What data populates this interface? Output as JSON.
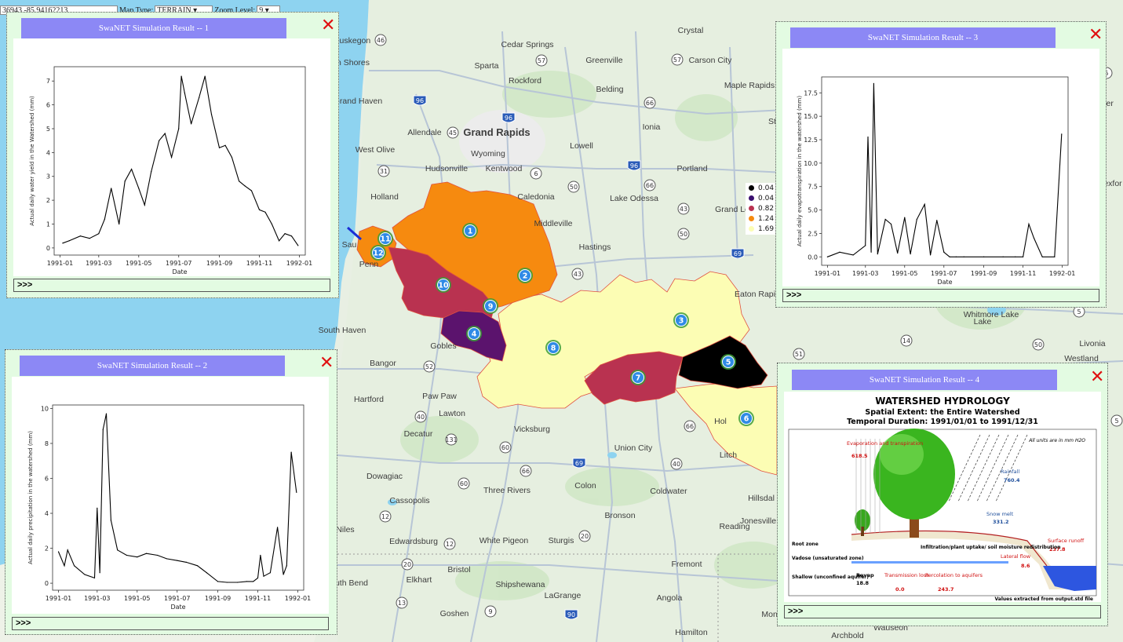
{
  "top_controls": {
    "coordinate_text": "36943,-85.94162213",
    "map_type_label": "Map Type:",
    "map_type_value": "TERRAIN",
    "zoom_label": "Zoom Level:",
    "zoom_value": "9"
  },
  "map": {
    "places": [
      {
        "name": "Crystal"
      },
      {
        "name": "Muskegon"
      },
      {
        "name": "Cedar Springs"
      },
      {
        "name": "Sparta"
      },
      {
        "name": "Greenville"
      },
      {
        "name": "Carson City"
      },
      {
        "name": "Rockford"
      },
      {
        "name": "Belding"
      },
      {
        "name": "Maple Rapids"
      },
      {
        "name": "Grand Haven"
      },
      {
        "name": "Allendale"
      },
      {
        "name": "Grand Rapids"
      },
      {
        "name": "Ionia"
      },
      {
        "name": "West Olive"
      },
      {
        "name": "Wyoming"
      },
      {
        "name": "Lowell"
      },
      {
        "name": "Hudsonville"
      },
      {
        "name": "Kentwood"
      },
      {
        "name": "Portland"
      },
      {
        "name": "Holland"
      },
      {
        "name": "Caledonia"
      },
      {
        "name": "Lake Odessa"
      },
      {
        "name": "Grand Le"
      },
      {
        "name": "Middleville"
      },
      {
        "name": "Hastings"
      },
      {
        "name": "Eaton Rapi"
      },
      {
        "name": "South Haven"
      },
      {
        "name": "Gobles"
      },
      {
        "name": "Bangor"
      },
      {
        "name": "Paw Paw"
      },
      {
        "name": "Hartford"
      },
      {
        "name": "Lawton"
      },
      {
        "name": "Decatur"
      },
      {
        "name": "Vicksburg"
      },
      {
        "name": "Union City"
      },
      {
        "name": "Coldwater"
      },
      {
        "name": "Dowagiac"
      },
      {
        "name": "Three Rivers"
      },
      {
        "name": "Colon"
      },
      {
        "name": "Cassopolis"
      },
      {
        "name": "Bronson"
      },
      {
        "name": "Niles"
      },
      {
        "name": "Edwardsburg"
      },
      {
        "name": "White Pigeon"
      },
      {
        "name": "Sturgis"
      },
      {
        "name": "Reading"
      },
      {
        "name": "Bristol"
      },
      {
        "name": "Elkhart"
      },
      {
        "name": "Shipshewana"
      },
      {
        "name": "LaGrange"
      },
      {
        "name": "Fremont"
      },
      {
        "name": "Angola"
      },
      {
        "name": "Goshen"
      },
      {
        "name": "Hamilton"
      },
      {
        "name": "Whitmore Lake"
      },
      {
        "name": "Livonia"
      },
      {
        "name": "Westland"
      },
      {
        "name": "Hillsdal"
      },
      {
        "name": "Jonesville"
      },
      {
        "name": "Litch"
      },
      {
        "name": "Archbold"
      },
      {
        "name": "Wauseon"
      },
      {
        "name": "Montp"
      },
      {
        "name": "uth Bend"
      },
      {
        "name": "n Shores"
      },
      {
        "name": "Sau"
      },
      {
        "name": "Penn"
      },
      {
        "name": "Hol"
      },
      {
        "name": "St"
      },
      {
        "name": "exfor"
      },
      {
        "name": "ler"
      },
      {
        "name": "Lake"
      }
    ],
    "shields": [
      "46",
      "57",
      "57",
      "96",
      "66",
      "96",
      "45",
      "6",
      "96",
      "31",
      "50",
      "66",
      "43",
      "50",
      "69",
      "43",
      "52",
      "14",
      "50",
      "51",
      "40",
      "131",
      "60",
      "66",
      "69",
      "40",
      "60",
      "66",
      "12",
      "12",
      "20",
      "13",
      "9",
      "90",
      "20",
      "5",
      "5",
      "5"
    ],
    "subbasin_labels": [
      "1",
      "2",
      "3",
      "4",
      "5",
      "6",
      "7",
      "8",
      "9",
      "10",
      "11",
      "12"
    ],
    "subbasin_colors": {
      "orange": "#f68a0f",
      "crimson": "#b93250",
      "purple": "#5b136d",
      "pale": "#fcfdb4",
      "black": "#000000"
    }
  },
  "legend": {
    "entries": [
      {
        "value": "0.04",
        "color": "#000000"
      },
      {
        "value": "0.04",
        "color": "#3b0f70"
      },
      {
        "value": "0.82",
        "color": "#b93250"
      },
      {
        "value": "1.24",
        "color": "#f68a0f"
      },
      {
        "value": "1.69",
        "color": "#fcfdb4"
      }
    ]
  },
  "popups": [
    {
      "title": "SwaNET Simulation Result -- 1",
      "more": ">>>",
      "close": "✕"
    },
    {
      "title": "SwaNET Simulation Result -- 2",
      "more": ">>>",
      "close": "✕"
    },
    {
      "title": "SwaNET Simulation Result -- 3",
      "more": ">>>",
      "close": "✕"
    },
    {
      "title": "SwaNET Simulation Result -- 4",
      "more": ">>>",
      "close": "✕"
    }
  ],
  "chart_data": [
    {
      "type": "line",
      "ylabel": "Actual daily water yield in the Watershed (mm)",
      "xlabel": "Date",
      "x_ticks": [
        "1991-01",
        "1991-03",
        "1991-05",
        "1991-07",
        "1991-09",
        "1991-11",
        "1992-01"
      ],
      "y_ticks": [
        0,
        1,
        2,
        3,
        4,
        5,
        6,
        7
      ],
      "ylim": [
        -0.3,
        7.6
      ],
      "x": [
        "1991-01-05",
        "1991-01-15",
        "1991-02-01",
        "1991-02-15",
        "1991-03-01",
        "1991-03-10",
        "1991-03-20",
        "1991-04-01",
        "1991-04-10",
        "1991-04-20",
        "1991-05-01",
        "1991-05-10",
        "1991-05-20",
        "1991-06-01",
        "1991-06-10",
        "1991-06-20",
        "1991-07-01",
        "1991-07-05",
        "1991-07-10",
        "1991-07-20",
        "1991-08-01",
        "1991-08-10",
        "1991-08-20",
        "1991-09-01",
        "1991-09-10",
        "1991-09-20",
        "1991-10-01",
        "1991-10-10",
        "1991-10-20",
        "1991-11-01",
        "1991-11-10",
        "1991-11-20",
        "1991-12-01",
        "1991-12-10",
        "1991-12-20",
        "1991-12-30"
      ],
      "y": [
        0.2,
        0.3,
        0.5,
        0.4,
        0.6,
        1.2,
        2.5,
        1.0,
        2.8,
        3.3,
        2.5,
        1.8,
        3.2,
        4.5,
        4.8,
        3.8,
        5.0,
        7.2,
        6.5,
        5.2,
        6.3,
        7.2,
        5.6,
        4.2,
        4.3,
        3.8,
        2.8,
        2.6,
        2.4,
        1.6,
        1.5,
        1.0,
        0.3,
        0.6,
        0.5,
        0.1
      ]
    },
    {
      "type": "line",
      "ylabel": "Actual daily precipitation in the watershed (mm)",
      "xlabel": "Date",
      "x_ticks": [
        "1991-01",
        "1991-03",
        "1991-05",
        "1991-07",
        "1991-09",
        "1991-11",
        "1992-01"
      ],
      "y_ticks": [
        0,
        2,
        4,
        6,
        8,
        10
      ],
      "ylim": [
        -0.4,
        10.2
      ],
      "x": [
        "1991-01-01",
        "1991-01-10",
        "1991-01-15",
        "1991-01-25",
        "1991-02-10",
        "1991-02-25",
        "1991-03-01",
        "1991-03-05",
        "1991-03-10",
        "1991-03-15",
        "1991-03-22",
        "1991-04-01",
        "1991-04-15",
        "1991-05-01",
        "1991-05-15",
        "1991-06-01",
        "1991-06-15",
        "1991-07-01",
        "1991-07-15",
        "1991-08-01",
        "1991-08-15",
        "1991-09-01",
        "1991-09-15",
        "1991-10-01",
        "1991-10-15",
        "1991-10-25",
        "1991-11-01",
        "1991-11-05",
        "1991-11-10",
        "1991-11-20",
        "1991-12-01",
        "1991-12-10",
        "1991-12-15",
        "1991-12-22",
        "1991-12-30"
      ],
      "y": [
        1.8,
        1.0,
        1.9,
        1.0,
        0.5,
        0.3,
        4.3,
        0.6,
        8.8,
        9.7,
        3.6,
        1.9,
        1.6,
        1.5,
        1.7,
        1.6,
        1.4,
        1.3,
        1.2,
        1.0,
        0.6,
        0.1,
        0.05,
        0.05,
        0.1,
        0.1,
        0.3,
        1.6,
        0.4,
        0.6,
        3.2,
        0.5,
        1.0,
        7.5,
        5.2
      ]
    },
    {
      "type": "line",
      "ylabel": "Actual daily evapotranspiration in the watershed (mm)",
      "xlabel": "Date",
      "x_ticks": [
        "1991-01",
        "1991-03",
        "1991-05",
        "1991-07",
        "1991-09",
        "1991-11",
        "1992-01"
      ],
      "y_ticks": [
        0.0,
        2.5,
        5.0,
        7.5,
        10.0,
        12.5,
        15.0,
        17.5
      ],
      "ylim": [
        -0.9,
        19.2
      ],
      "x": [
        "1991-01-01",
        "1991-01-20",
        "1991-02-10",
        "1991-03-01",
        "1991-03-05",
        "1991-03-10",
        "1991-03-14",
        "1991-03-20",
        "1991-04-01",
        "1991-04-10",
        "1991-04-20",
        "1991-05-01",
        "1991-05-10",
        "1991-05-20",
        "1991-06-01",
        "1991-06-10",
        "1991-06-20",
        "1991-07-01",
        "1991-07-10",
        "1991-07-20",
        "1991-08-01",
        "1991-09-01",
        "1991-10-01",
        "1991-10-20",
        "1991-11-01",
        "1991-11-10",
        "1991-11-18",
        "1991-12-01",
        "1991-12-20",
        "1991-12-31"
      ],
      "y": [
        0.0,
        0.5,
        0.2,
        1.2,
        12.8,
        0.5,
        18.5,
        0.3,
        4.0,
        3.5,
        0.4,
        4.2,
        0.3,
        4.0,
        5.6,
        0.2,
        3.9,
        0.5,
        0.0,
        0.0,
        0.0,
        0.0,
        0.0,
        0.0,
        0.0,
        3.5,
        2.0,
        0.0,
        0.0,
        13.1
      ]
    }
  ],
  "hydrology": {
    "title": "WATERSHED HYDROLOGY",
    "subtitle1": "Spatial Extent: the Entire Watershed",
    "subtitle2": "Temporal Duration: 1991/01/01 to 1991/12/31",
    "units_note": "All units are in mm H2O",
    "evap_label": "Evaporation and transpiration",
    "evap_value": "618.5",
    "rain_label": "Rainfall",
    "rain_value": "760.4",
    "snow_label": "Snow melt",
    "snow_value": "331.2",
    "runoff_label": "Surface runoff",
    "runoff_value": "237.8",
    "lateral_label": "Lateral flow",
    "lateral_value": "8.6",
    "infil_label": "Infiltration/plant uptake/ soil moisture redistribution",
    "root_zone": "Root zone",
    "vadose": "Vadose (unsaturated zone)",
    "shallow": "Shallow (unconfined aquifer)",
    "revap_label": "Revap",
    "revap_value": "18.8",
    "trans_label": "Transmission loss",
    "trans_value": "0.0",
    "perc_label": "Percolation to aquifers",
    "perc_value": "243.7",
    "footer": "Values extracted from output.std file"
  }
}
